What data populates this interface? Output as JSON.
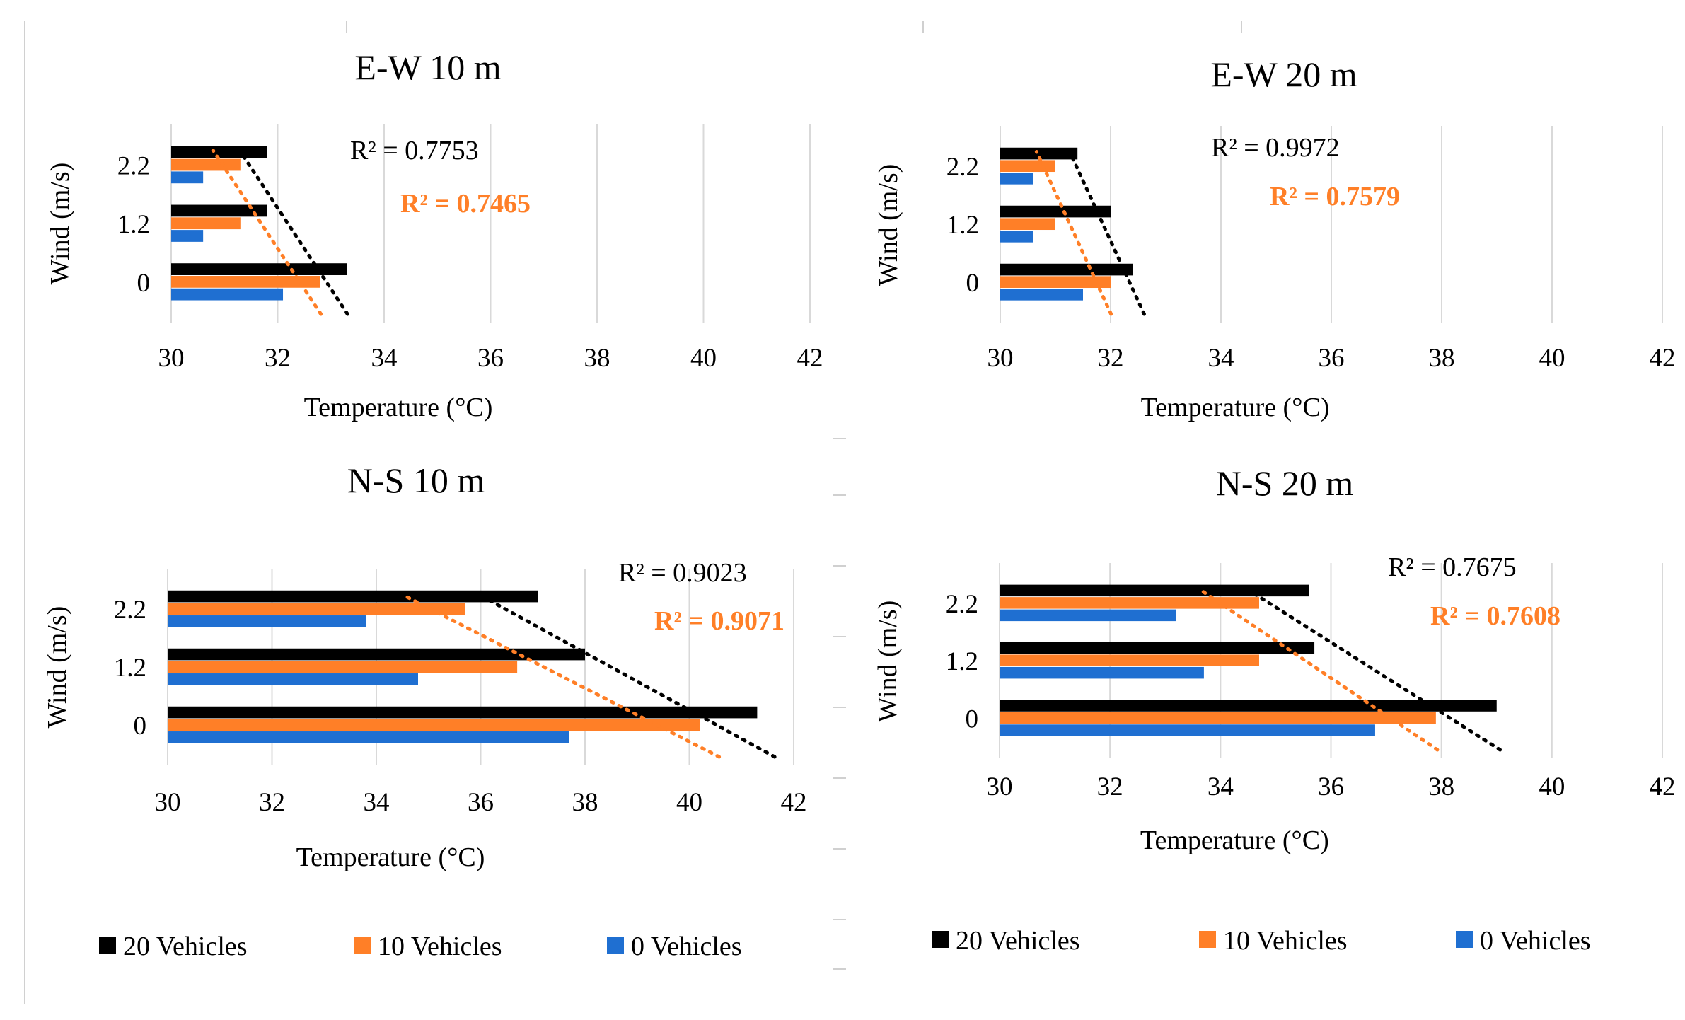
{
  "colors": {
    "vehicles_20": "#000000",
    "vehicles_10": "#FF7F27",
    "vehicles_0": "#1F6FD1",
    "grid": "#D9D9D9",
    "divider": "#D0D0D0"
  },
  "legend": {
    "items": [
      {
        "label": "20 Vehicles",
        "color": "#000000"
      },
      {
        "label": "10 Vehicles",
        "color": "#FF7F27"
      },
      {
        "label": "0 Vehicles",
        "color": "#1F6FD1"
      }
    ]
  },
  "chart_data": [
    {
      "type": "bar",
      "orientation": "horizontal",
      "title": "E-W 10 m",
      "xlabel": "Temperature (°C)",
      "ylabel": "Wind (m/s)",
      "xlim": [
        30,
        42
      ],
      "xticks": [
        30,
        32,
        34,
        36,
        38,
        40,
        42
      ],
      "categories": [
        "0",
        "1.2",
        "2.2"
      ],
      "series": [
        {
          "name": "20 Vehicles",
          "values": [
            33.3,
            31.8,
            31.8
          ]
        },
        {
          "name": "10 Vehicles",
          "values": [
            32.8,
            31.3,
            31.3
          ]
        },
        {
          "name": "0 Vehicles",
          "values": [
            32.1,
            30.6,
            30.6
          ]
        }
      ],
      "trendlines": [
        {
          "series": "20 Vehicles",
          "r2": "R² = 0.7753",
          "color": "#000000",
          "bold": false
        },
        {
          "series": "10 Vehicles",
          "r2": "R² = 0.7465",
          "color": "#FF7F27",
          "bold": true
        }
      ],
      "grid": true
    },
    {
      "type": "bar",
      "orientation": "horizontal",
      "title": "E-W 20 m",
      "xlabel": "Temperature (°C)",
      "ylabel": "Wind (m/s)",
      "xlim": [
        30,
        42
      ],
      "xticks": [
        30,
        32,
        34,
        36,
        38,
        40,
        42
      ],
      "categories": [
        "0",
        "1.2",
        "2.2"
      ],
      "series": [
        {
          "name": "20 Vehicles",
          "values": [
            32.4,
            32.0,
            31.4
          ]
        },
        {
          "name": "10 Vehicles",
          "values": [
            32.0,
            31.0,
            31.0
          ]
        },
        {
          "name": "0 Vehicles",
          "values": [
            31.5,
            30.6,
            30.6
          ]
        }
      ],
      "trendlines": [
        {
          "series": "20 Vehicles",
          "r2": "R² = 0.9972",
          "color": "#000000",
          "bold": false
        },
        {
          "series": "10 Vehicles",
          "r2": "R² = 0.7579",
          "color": "#FF7F27",
          "bold": true
        }
      ],
      "grid": true
    },
    {
      "type": "bar",
      "orientation": "horizontal",
      "title": "N-S 10 m",
      "xlabel": "Temperature (°C)",
      "ylabel": "Wind (m/s)",
      "xlim": [
        30,
        42
      ],
      "xticks": [
        30,
        32,
        34,
        36,
        38,
        40,
        42
      ],
      "categories": [
        "0",
        "1.2",
        "2.2"
      ],
      "series": [
        {
          "name": "20 Vehicles",
          "values": [
            41.3,
            38.0,
            37.1
          ]
        },
        {
          "name": "10 Vehicles",
          "values": [
            40.2,
            36.7,
            35.7
          ]
        },
        {
          "name": "0 Vehicles",
          "values": [
            37.7,
            34.8,
            33.8
          ]
        }
      ],
      "trendlines": [
        {
          "series": "20 Vehicles",
          "r2": "R² = 0.9023",
          "color": "#000000",
          "bold": false
        },
        {
          "series": "10 Vehicles",
          "r2": "R² = 0.9071",
          "color": "#FF7F27",
          "bold": true
        }
      ],
      "grid": true
    },
    {
      "type": "bar",
      "orientation": "horizontal",
      "title": "N-S 20 m",
      "xlabel": "Temperature (°C)",
      "ylabel": "Wind (m/s)",
      "xlim": [
        30,
        42
      ],
      "xticks": [
        30,
        32,
        34,
        36,
        38,
        40,
        42
      ],
      "categories": [
        "0",
        "1.2",
        "2.2"
      ],
      "series": [
        {
          "name": "20 Vehicles",
          "values": [
            39.0,
            35.7,
            35.6
          ]
        },
        {
          "name": "10 Vehicles",
          "values": [
            37.9,
            34.7,
            34.7
          ]
        },
        {
          "name": "0 Vehicles",
          "values": [
            36.8,
            33.7,
            33.2
          ]
        }
      ],
      "trendlines": [
        {
          "series": "20 Vehicles",
          "r2": "R² = 0.7675",
          "color": "#000000",
          "bold": false
        },
        {
          "series": "10 Vehicles",
          "r2": "R² = 0.7608",
          "color": "#FF7F27",
          "bold": true
        }
      ],
      "grid": true
    }
  ]
}
